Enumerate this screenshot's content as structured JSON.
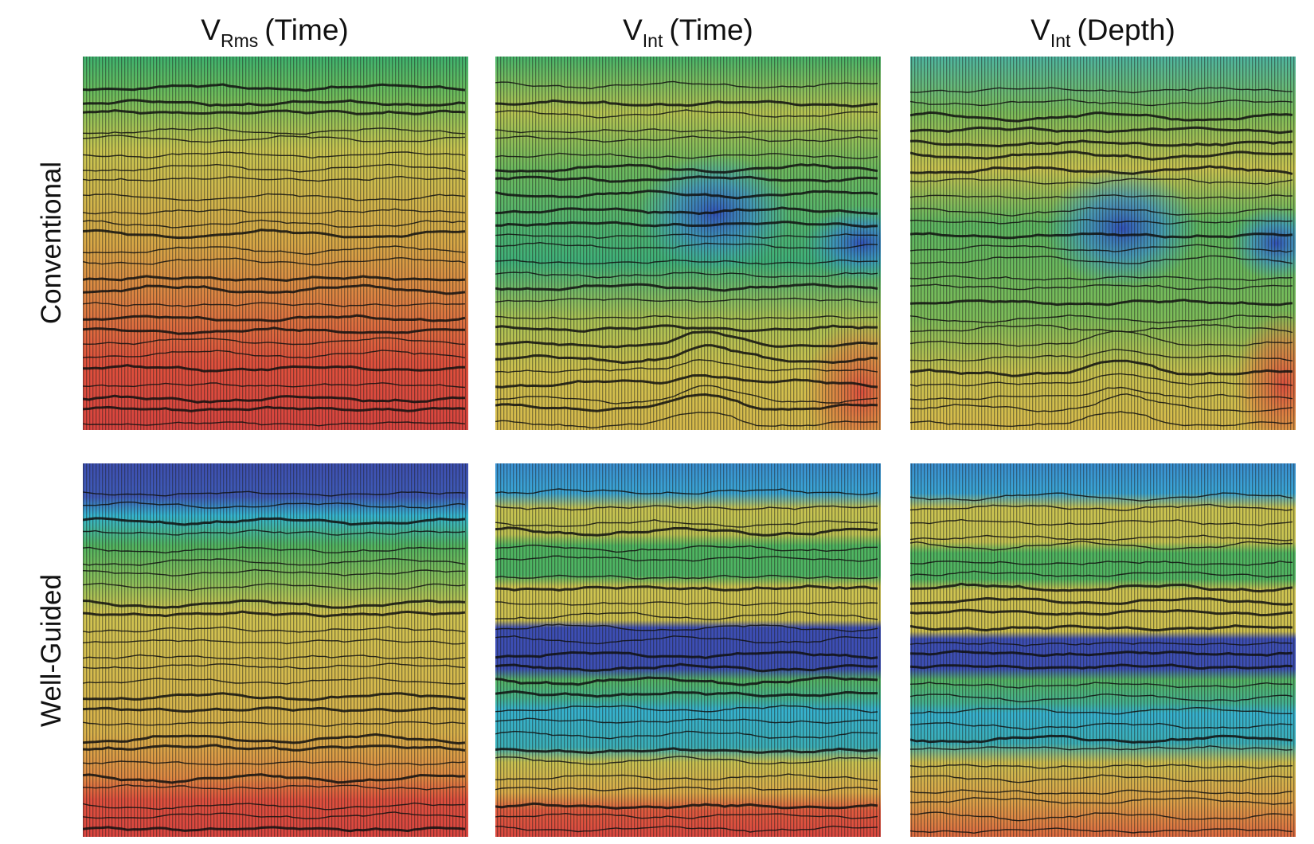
{
  "columns": [
    {
      "main": "V",
      "sub": "Rms",
      "rest": "(Time)"
    },
    {
      "main": "V",
      "sub": "Int",
      "rest": "(Time)"
    },
    {
      "main": "V",
      "sub": "Int",
      "rest": "(Depth)"
    }
  ],
  "rows": [
    "Conventional",
    "Well-Guided"
  ]
}
